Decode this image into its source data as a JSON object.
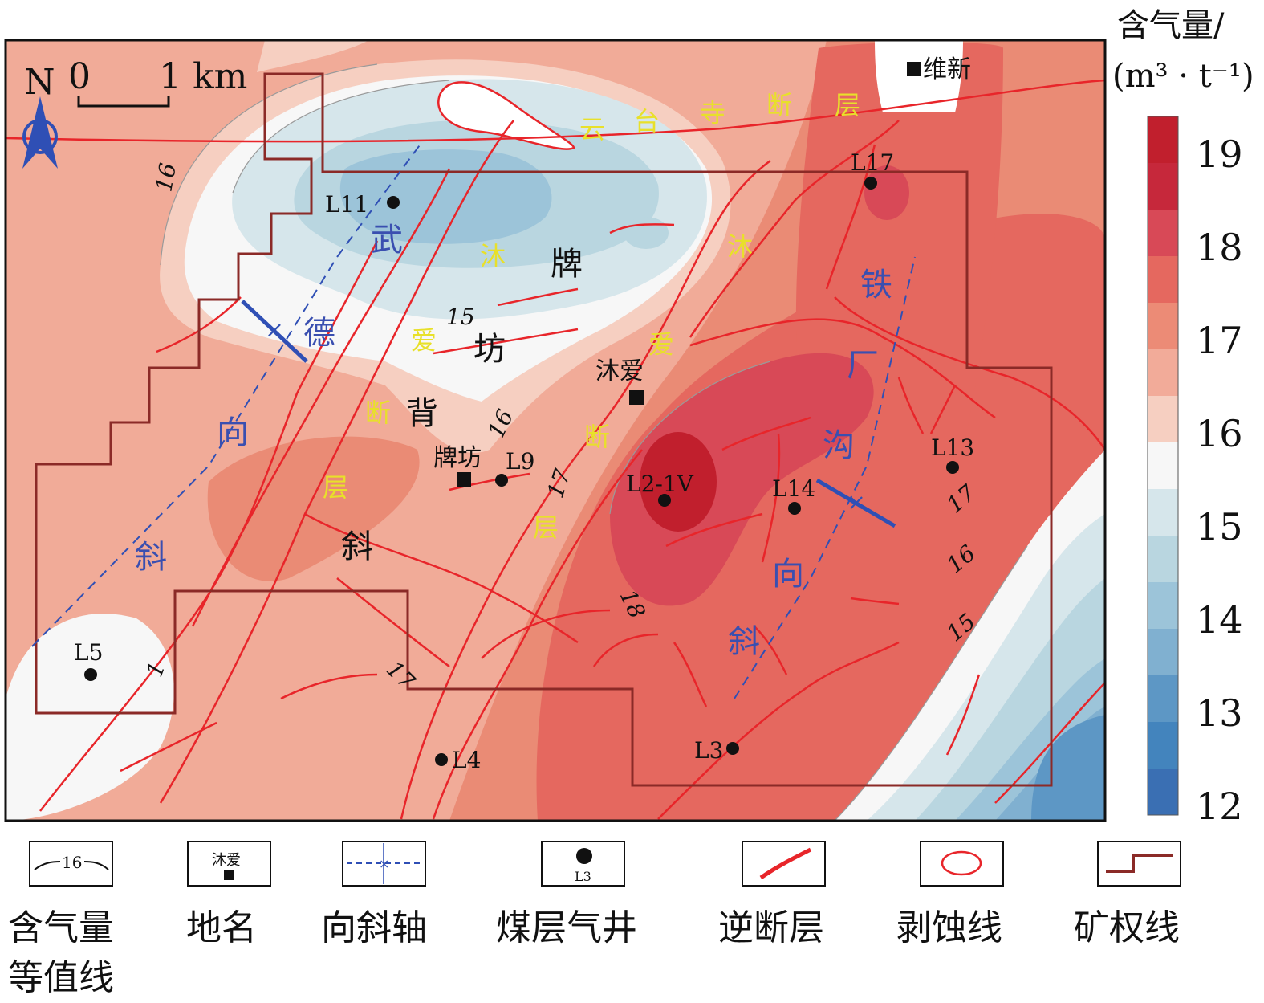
{
  "scale": {
    "zero": "0",
    "one": "1 km"
  },
  "north": "N",
  "colorbar": {
    "title_line1": "含气量/",
    "title_line2": "(m³ · t⁻¹)",
    "levels": [
      "19",
      "18",
      "17",
      "16",
      "15",
      "14",
      "13",
      "12"
    ],
    "colors": [
      "#c11f2d",
      "#c6283b",
      "#d84957",
      "#e5685f",
      "#ec8b76",
      "#f2ab99",
      "#f6cfc1",
      "#f7f7f7",
      "#d6e6eb",
      "#b9d6e0",
      "#9cc4d9",
      "#80b0d0",
      "#5d97c5",
      "#4384bd",
      "#3a6fb3"
    ]
  },
  "contour_labels": [
    {
      "text": "16"
    },
    {
      "text": "15"
    },
    {
      "text": "16"
    },
    {
      "text": "17"
    },
    {
      "text": "18"
    },
    {
      "text": "17"
    },
    {
      "text": "16"
    },
    {
      "text": "15"
    },
    {
      "text": "17"
    },
    {
      "text": "1"
    }
  ],
  "wells": [
    {
      "name": "L11"
    },
    {
      "name": "L17"
    },
    {
      "name": "L9"
    },
    {
      "name": "L2-1V"
    },
    {
      "name": "L14"
    },
    {
      "name": "L13"
    },
    {
      "name": "L5"
    },
    {
      "name": "L4"
    },
    {
      "name": "L3"
    }
  ],
  "places": [
    {
      "name": "维新"
    },
    {
      "name": "沐爱"
    },
    {
      "name": "牌坊"
    }
  ],
  "structures": {
    "wude_chars": [
      "武",
      "德",
      "向",
      "斜"
    ],
    "tiechang_chars": [
      "铁",
      "厂",
      "沟",
      "向",
      "斜"
    ],
    "paifang_chars": [
      "牌",
      "坊",
      "背",
      "斜"
    ],
    "yuntaisi_chars": [
      "云",
      "台",
      "寺",
      "断",
      "层"
    ],
    "muai_chars": [
      "沐",
      "爱",
      "断",
      "层"
    ],
    "muai2_chars": [
      "沐",
      "爱",
      "断",
      "层"
    ]
  },
  "legend": [
    {
      "label": "含气量\n等值线",
      "symbol_text": "16",
      "icon": "contour-line-icon"
    },
    {
      "label": "地名",
      "symbol_text": "沐爱",
      "icon": "place-square-icon"
    },
    {
      "label": "向斜轴",
      "symbol_text": "",
      "icon": "syncline-axis-icon"
    },
    {
      "label": "煤层气井",
      "symbol_text": "L3",
      "icon": "well-dot-icon"
    },
    {
      "label": "逆断层",
      "symbol_text": "",
      "icon": "reverse-fault-icon"
    },
    {
      "label": "剥蚀线",
      "symbol_text": "",
      "icon": "erosion-line-icon"
    },
    {
      "label": "矿权线",
      "symbol_text": "",
      "icon": "mining-right-line-icon"
    }
  ]
}
